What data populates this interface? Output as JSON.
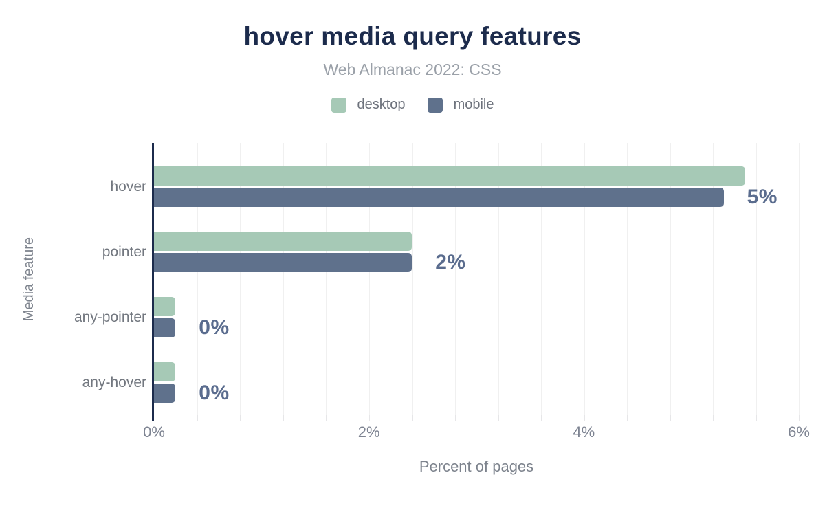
{
  "chart_data": {
    "type": "bar",
    "orientation": "horizontal",
    "title": "hover media query features",
    "subtitle": "Web Almanac 2022: CSS",
    "categories": [
      "hover",
      "pointer",
      "any-pointer",
      "any-hover"
    ],
    "series": [
      {
        "name": "desktop",
        "color": "#a6c9b6",
        "values": [
          5.5,
          2.4,
          0.2,
          0.2
        ]
      },
      {
        "name": "mobile",
        "color": "#5f718c",
        "values": [
          5.3,
          2.4,
          0.2,
          0.2
        ]
      }
    ],
    "bar_value_labels": [
      "5%",
      "2%",
      "0%",
      "0%"
    ],
    "xlabel": "Percent of pages",
    "ylabel": "Media feature",
    "xlim": [
      0,
      6
    ],
    "x_ticks": [
      {
        "value": 0,
        "label": "0%"
      },
      {
        "value": 2,
        "label": "2%"
      },
      {
        "value": 4,
        "label": "4%"
      },
      {
        "value": 6,
        "label": "6%"
      }
    ],
    "minor_grid_step": 0.4,
    "grid": "vertical-minor-gridlines",
    "legend_position": "top-center"
  },
  "colors": {
    "background": "#ffffff",
    "title": "#1c2b4c",
    "subtitle": "#9aa0a8",
    "legend_text": "#6d727c",
    "category_label": "#72777f",
    "tick_label": "#7d8391",
    "axis_title": "#7d838d",
    "value_label": "#5a6c8e",
    "axis_line": "#1c2b4c",
    "gridline": "#f0f0f0",
    "tick_mark": "#e6e6e8"
  }
}
